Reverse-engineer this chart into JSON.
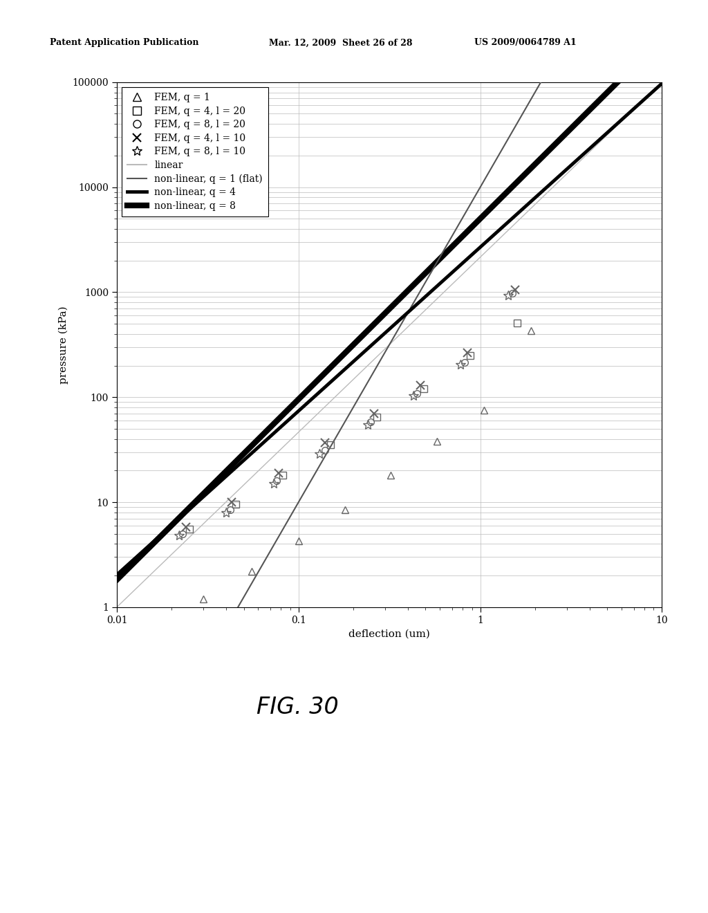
{
  "xlabel": "deflection (um)",
  "ylabel": "pressure (kPa)",
  "xlim": [
    0.01,
    10
  ],
  "ylim": [
    1,
    100000
  ],
  "background_color": "#ffffff",
  "grid_color": "#bbbbbb",
  "fem_q1_x": [
    0.03,
    0.055,
    0.1,
    0.18,
    0.32,
    0.58,
    1.05,
    1.9
  ],
  "fem_q1_y": [
    1.2,
    2.2,
    4.3,
    8.5,
    18,
    38,
    75,
    430
  ],
  "fem_q4l20_x": [
    0.025,
    0.045,
    0.082,
    0.15,
    0.27,
    0.49,
    0.88,
    1.6
  ],
  "fem_q4l20_y": [
    5.5,
    9.5,
    18,
    35,
    65,
    120,
    250,
    510
  ],
  "fem_q8l20_x": [
    0.023,
    0.042,
    0.076,
    0.14,
    0.25,
    0.45,
    0.82,
    1.5
  ],
  "fem_q8l20_y": [
    5.0,
    8.5,
    16,
    31,
    58,
    108,
    215,
    980
  ],
  "fem_q4l10_x": [
    0.024,
    0.043,
    0.078,
    0.14,
    0.26,
    0.47,
    0.85,
    1.55
  ],
  "fem_q4l10_y": [
    5.8,
    10,
    19,
    37,
    70,
    130,
    265,
    1050
  ],
  "fem_q8l10_x": [
    0.022,
    0.04,
    0.073,
    0.13,
    0.24,
    0.43,
    0.78,
    1.42
  ],
  "fem_q8l10_y": [
    4.8,
    8.0,
    15,
    29,
    55,
    103,
    205,
    930
  ],
  "linear_color": "#bbbbbb",
  "linear_lw": 1.0,
  "nl_q1_color": "#555555",
  "nl_q1_lw": 1.5,
  "nl_q4_color": "#000000",
  "nl_q4_lw": 3.5,
  "nl_q8_color": "#000000",
  "nl_q8_lw": 6.0,
  "marker_color": "#666666",
  "marker_size": 7
}
